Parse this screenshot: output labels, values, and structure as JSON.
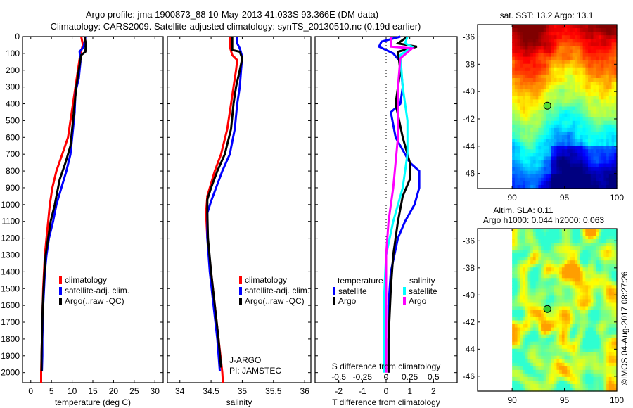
{
  "title": {
    "line1": "Argo profile: jma 1900873_88 10-May-2013 41.033S 93.366E (DM data)",
    "line2": "Climatology: CARS2009. Satellite-adjusted climatology: synTS_20130510.nc (0.19d earlier)"
  },
  "credit": "©IMOS 04-Aug-2017 08:27:26",
  "colors": {
    "climatology": "#ff0000",
    "satellite": "#0000ff",
    "argo": "#000000",
    "sal_satellite": "#00ffff",
    "sal_argo": "#ff00ff"
  },
  "chart_data": [
    {
      "type": "line",
      "id": "temperature",
      "xlabel": "temperature (deg C)",
      "ylabel": "",
      "xlim": [
        -2,
        32
      ],
      "ylim": [
        2060,
        0
      ],
      "xticks": [
        0,
        5,
        10,
        15,
        20,
        25,
        30
      ],
      "yticks": [
        0,
        100,
        200,
        300,
        400,
        500,
        600,
        700,
        800,
        900,
        1000,
        1100,
        1200,
        1300,
        1400,
        1500,
        1600,
        1700,
        1800,
        1900,
        2000
      ],
      "legend": [
        "climatology",
        "satellite-adj. clim.",
        "Argo(..raw -QC)"
      ],
      "legend_position": "center-left",
      "series": [
        {
          "name": "climatology",
          "color": "#ff0000",
          "points": [
            [
              12.2,
              0
            ],
            [
              12.6,
              50
            ],
            [
              12.0,
              100
            ],
            [
              11.4,
              200
            ],
            [
              10.8,
              300
            ],
            [
              10.2,
              400
            ],
            [
              9.6,
              500
            ],
            [
              9.0,
              600
            ],
            [
              7.6,
              700
            ],
            [
              6.2,
              800
            ],
            [
              5.2,
              900
            ],
            [
              4.6,
              1000
            ],
            [
              4.2,
              1100
            ],
            [
              3.8,
              1200
            ],
            [
              3.4,
              1300
            ],
            [
              3.2,
              1400
            ],
            [
              3.0,
              1500
            ],
            [
              2.9,
              1600
            ],
            [
              2.8,
              1700
            ],
            [
              2.7,
              1800
            ],
            [
              2.6,
              1900
            ],
            [
              2.5,
              2000
            ],
            [
              2.5,
              2060
            ]
          ]
        },
        {
          "name": "satellite-adj. clim.",
          "color": "#0000ff",
          "points": [
            [
              13.2,
              0
            ],
            [
              12.8,
              60
            ],
            [
              11.8,
              90
            ],
            [
              12.0,
              150
            ],
            [
              11.6,
              250
            ],
            [
              10.8,
              330
            ],
            [
              10.6,
              450
            ],
            [
              10.2,
              550
            ],
            [
              9.6,
              700
            ],
            [
              8.6,
              800
            ],
            [
              7.4,
              900
            ],
            [
              6.2,
              1000
            ],
            [
              5.4,
              1100
            ],
            [
              4.4,
              1200
            ],
            [
              3.8,
              1300
            ],
            [
              3.4,
              1400
            ],
            [
              3.2,
              1500
            ],
            [
              3.0,
              1600
            ],
            [
              2.9,
              1700
            ],
            [
              2.8,
              1800
            ],
            [
              2.8,
              1900
            ],
            [
              2.7,
              1990
            ]
          ]
        },
        {
          "name": "Argo(..raw -QC)",
          "color": "#000000",
          "points": [
            [
              13.0,
              0
            ],
            [
              13.3,
              40
            ],
            [
              13.2,
              90
            ],
            [
              12.2,
              110
            ],
            [
              11.6,
              200
            ],
            [
              11.0,
              300
            ],
            [
              10.6,
              400
            ],
            [
              10.2,
              500
            ],
            [
              9.6,
              650
            ],
            [
              8.4,
              750
            ],
            [
              7.0,
              850
            ],
            [
              5.8,
              1000
            ],
            [
              4.8,
              1100
            ],
            [
              4.2,
              1200
            ],
            [
              3.6,
              1300
            ],
            [
              3.3,
              1400
            ],
            [
              3.1,
              1500
            ],
            [
              2.9,
              1600
            ],
            [
              2.8,
              1700
            ],
            [
              2.7,
              1800
            ],
            [
              2.6,
              1900
            ],
            [
              2.6,
              1990
            ]
          ]
        }
      ]
    },
    {
      "type": "line",
      "id": "salinity",
      "xlabel": "salinity",
      "xlim": [
        33.8,
        36.1
      ],
      "ylim": [
        2060,
        0
      ],
      "xticks": [
        34,
        34.5,
        35,
        35.5,
        36
      ],
      "xticklabels": [
        "34",
        "34.5",
        "35",
        "35.5",
        "36"
      ],
      "legend": [
        "climatology",
        "satellite-adj. clim.",
        "Argo(..raw -QC)"
      ],
      "legend_position": "lower-right",
      "annotation": [
        "J-ARGO",
        "PI: JAMSTEC"
      ],
      "series": [
        {
          "name": "climatology",
          "color": "#ff0000",
          "points": [
            [
              34.8,
              0
            ],
            [
              34.8,
              60
            ],
            [
              34.84,
              110
            ],
            [
              34.92,
              140
            ],
            [
              34.9,
              200
            ],
            [
              34.86,
              300
            ],
            [
              34.82,
              400
            ],
            [
              34.76,
              550
            ],
            [
              34.66,
              700
            ],
            [
              34.56,
              800
            ],
            [
              34.48,
              900
            ],
            [
              34.44,
              950
            ],
            [
              34.42,
              1050
            ],
            [
              34.44,
              1200
            ],
            [
              34.5,
              1400
            ],
            [
              34.56,
              1600
            ],
            [
              34.62,
              1800
            ],
            [
              34.68,
              2000
            ],
            [
              34.69,
              2060
            ]
          ]
        },
        {
          "name": "satellite-adj. clim.",
          "color": "#0000ff",
          "points": [
            [
              34.92,
              0
            ],
            [
              34.92,
              40
            ],
            [
              34.96,
              70
            ],
            [
              35.0,
              120
            ],
            [
              34.98,
              200
            ],
            [
              34.96,
              300
            ],
            [
              34.92,
              400
            ],
            [
              34.88,
              550
            ],
            [
              34.8,
              700
            ],
            [
              34.68,
              800
            ],
            [
              34.58,
              900
            ],
            [
              34.5,
              980
            ],
            [
              34.44,
              1050
            ],
            [
              34.44,
              1200
            ],
            [
              34.48,
              1400
            ],
            [
              34.54,
              1600
            ],
            [
              34.6,
              1800
            ],
            [
              34.64,
              1990
            ]
          ]
        },
        {
          "name": "Argo(..raw -QC)",
          "color": "#000000",
          "points": [
            [
              34.84,
              0
            ],
            [
              34.84,
              80
            ],
            [
              34.96,
              90
            ],
            [
              35.0,
              130
            ],
            [
              34.96,
              200
            ],
            [
              34.9,
              300
            ],
            [
              34.86,
              400
            ],
            [
              34.82,
              550
            ],
            [
              34.72,
              700
            ],
            [
              34.6,
              800
            ],
            [
              34.5,
              900
            ],
            [
              34.44,
              970
            ],
            [
              34.44,
              1050
            ],
            [
              34.45,
              1200
            ],
            [
              34.5,
              1400
            ],
            [
              34.56,
              1600
            ],
            [
              34.62,
              1800
            ],
            [
              34.66,
              1970
            ]
          ]
        }
      ]
    },
    {
      "type": "line",
      "id": "difference",
      "xlabel": "T difference from climatology",
      "xlim": [
        -3,
        3
      ],
      "ylim": [
        2060,
        0
      ],
      "xticks": [
        -2,
        -1,
        0,
        1,
        2
      ],
      "secondary_xlabel": "S difference from climatology",
      "secondary_xticks": [
        "-0.5",
        "-0.25",
        "0",
        "0.25",
        "0.5"
      ],
      "legend": {
        "temperature": [
          "satellite",
          "Argo"
        ],
        "salinity": [
          "satellite",
          "Argo"
        ]
      },
      "legend_position": "lower-center",
      "series": [
        {
          "name": "temperature satellite",
          "color": "#0000ff",
          "points": [
            [
              0.6,
              0
            ],
            [
              -0.2,
              30
            ],
            [
              -0.3,
              60
            ],
            [
              0.3,
              100
            ],
            [
              0.6,
              150
            ],
            [
              0.7,
              300
            ],
            [
              0.6,
              400
            ],
            [
              0.2,
              450
            ],
            [
              0.4,
              600
            ],
            [
              1.0,
              750
            ],
            [
              1.4,
              800
            ],
            [
              1.4,
              900
            ],
            [
              1.2,
              1000
            ],
            [
              0.8,
              1100
            ],
            [
              0.5,
              1200
            ],
            [
              0.2,
              1400
            ],
            [
              0.1,
              1600
            ],
            [
              0.1,
              1800
            ],
            [
              0.1,
              2000
            ]
          ]
        },
        {
          "name": "temperature Argo",
          "color": "#000000",
          "points": [
            [
              0.9,
              0
            ],
            [
              0.5,
              40
            ],
            [
              1.3,
              60
            ],
            [
              0.5,
              90
            ],
            [
              0.6,
              200
            ],
            [
              0.4,
              400
            ],
            [
              0.7,
              600
            ],
            [
              1.0,
              750
            ],
            [
              1.0,
              850
            ],
            [
              0.7,
              950
            ],
            [
              0.5,
              1100
            ],
            [
              0.3,
              1300
            ],
            [
              0.2,
              1500
            ],
            [
              0.1,
              1800
            ],
            [
              0.1,
              2000
            ]
          ]
        },
        {
          "name": "salinity satellite",
          "color": "#00ffff",
          "points": [
            [
              0.9,
              0
            ],
            [
              0.8,
              40
            ],
            [
              1.1,
              60
            ],
            [
              0.6,
              110
            ],
            [
              0.7,
              300
            ],
            [
              0.9,
              500
            ],
            [
              0.9,
              700
            ],
            [
              0.7,
              900
            ],
            [
              0.3,
              1100
            ],
            [
              0.0,
              1300
            ],
            [
              -0.1,
              1600
            ],
            [
              -0.1,
              1900
            ],
            [
              -0.1,
              2000
            ]
          ]
        },
        {
          "name": "salinity Argo",
          "color": "#ff00ff",
          "points": [
            [
              0.2,
              0
            ],
            [
              0.2,
              60
            ],
            [
              1.1,
              70
            ],
            [
              0.6,
              130
            ],
            [
              0.5,
              300
            ],
            [
              0.5,
              600
            ],
            [
              0.3,
              900
            ],
            [
              0.1,
              1100
            ],
            [
              0.0,
              1300
            ],
            [
              0.0,
              1600
            ],
            [
              0.0,
              1900
            ],
            [
              0.0,
              2000
            ]
          ]
        }
      ]
    },
    {
      "type": "heatmap",
      "id": "sst-map",
      "title": "sat. SST: 13.2 Argo: 13.1",
      "xlim": [
        86.7,
        100
      ],
      "ylim": [
        -47.1,
        -35.1
      ],
      "xticks": [
        90,
        95,
        100
      ],
      "yticks": [
        -36,
        -38,
        -40,
        -42,
        -44,
        -46
      ],
      "marker": {
        "lon": 93.366,
        "lat": -41.033
      },
      "description": "warm (dark red/orange) north grading to cool (blue) south"
    },
    {
      "type": "heatmap",
      "id": "sla-map",
      "title": "Altim. SLA: 0.11",
      "subtitle": "Argo h1000: 0.044 h2000: 0.063",
      "xlim": [
        86.7,
        100
      ],
      "ylim": [
        -47.1,
        -35.1
      ],
      "xticks": [
        90,
        95,
        100
      ],
      "yticks": [
        -36,
        -38,
        -40,
        -42,
        -44,
        -46
      ],
      "marker": {
        "lon": 93.366,
        "lat": -41.033
      },
      "description": "patchy green/yellow sea level anomaly field"
    }
  ]
}
